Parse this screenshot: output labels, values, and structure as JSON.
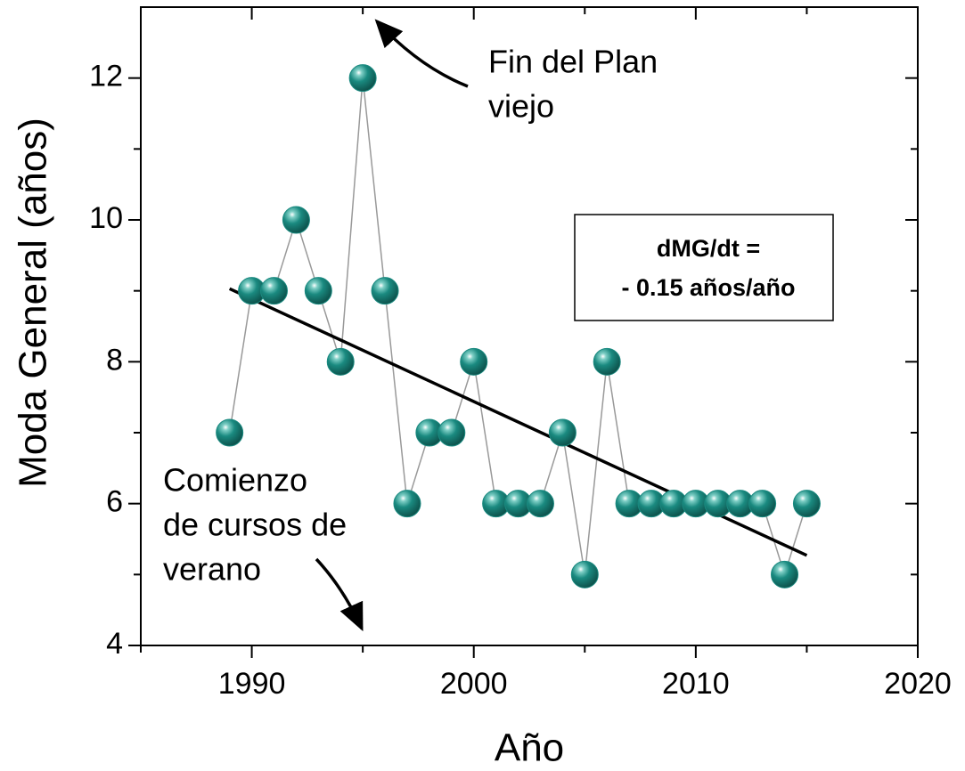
{
  "chart_data": {
    "type": "scatter",
    "xlabel": "Año",
    "ylabel": "Moda General (años)",
    "series": [
      {
        "color": "#1a8a80",
        "line_color": "#999999",
        "x": [
          1989,
          1990,
          1991,
          1992,
          1993,
          1994,
          1995,
          1996,
          1997,
          1998,
          1999,
          2000,
          2001,
          2002,
          2003,
          2004,
          2005,
          2006,
          2007,
          2008,
          2009,
          2010,
          2011,
          2012,
          2013,
          2014,
          2015
        ],
        "values": [
          7,
          9,
          9,
          10,
          9,
          8,
          12,
          9,
          6,
          7,
          7,
          8,
          6,
          6,
          6,
          7,
          5,
          8,
          6,
          6,
          6,
          6,
          6,
          6,
          6,
          5,
          6
        ]
      }
    ],
    "trend": {
      "color": "#000000",
      "x": [
        1989,
        2015
      ],
      "values": [
        9.03,
        5.27
      ]
    },
    "xlim": [
      1985,
      2020
    ],
    "xticks": [
      1990,
      2000,
      2010,
      2020
    ],
    "xticks_minor": [
      1985,
      1995,
      2005,
      2015
    ],
    "ylim": [
      4,
      13
    ],
    "yticks": [
      4,
      6,
      8,
      10,
      12
    ],
    "yticks_minor": [
      5,
      7,
      9,
      11
    ],
    "annotations": {
      "end_plan": [
        "Fin del Plan",
        "viejo"
      ],
      "summer": [
        "Comienzo",
        "de cursos de",
        "verano"
      ],
      "slope": [
        "dMG/dt =",
        "- 0.15 años/año"
      ]
    }
  }
}
